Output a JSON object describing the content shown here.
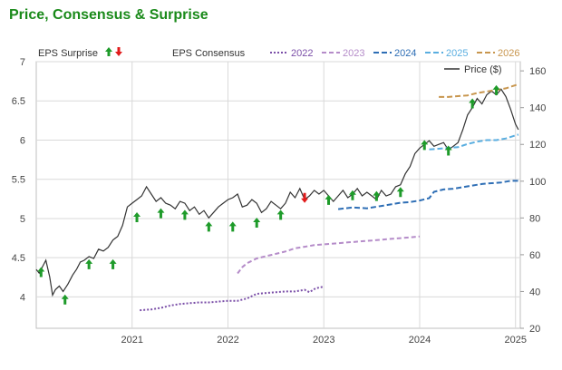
{
  "title": "Price, Consensus & Surprise",
  "chart_data": {
    "type": "line",
    "title": "Price, Consensus & Surprise",
    "x_ticks": [
      "2021",
      "2022",
      "2023",
      "2024",
      "2025"
    ],
    "x_range": [
      2020.0,
      2025.05
    ],
    "left_axis": {
      "ticks": [
        4,
        4.5,
        5,
        5.5,
        6,
        6.5,
        7
      ],
      "range": [
        3.6,
        7.0
      ]
    },
    "right_axis": {
      "ticks": [
        20,
        40,
        60,
        80,
        100,
        120,
        140,
        160
      ],
      "range": [
        20,
        165
      ]
    },
    "grid": true,
    "legend": {
      "surprise_label": "EPS Surprise",
      "consensus_label": "EPS Consensus",
      "price_label": "Price ($)",
      "position": "top"
    },
    "colors": {
      "price": "#333333",
      "2022": "#7b4fa8",
      "2023": "#b58cc9",
      "2024": "#2e6eb5",
      "2025": "#5aaee0",
      "2026": "#c8964e",
      "surprise_up": "#1e9b2a",
      "surprise_down": "#e11b1b",
      "grid": "#d9d9d9"
    },
    "series": [
      {
        "name": "Price ($)",
        "axis": "right",
        "x": [
          2020.0,
          2020.03,
          2020.07,
          2020.1,
          2020.14,
          2020.17,
          2020.2,
          2020.24,
          2020.28,
          2020.33,
          2020.38,
          2020.42,
          2020.46,
          2020.5,
          2020.55,
          2020.6,
          2020.65,
          2020.7,
          2020.75,
          2020.8,
          2020.85,
          2020.9,
          2020.95,
          2021.0,
          2021.05,
          2021.1,
          2021.15,
          2021.2,
          2021.25,
          2021.3,
          2021.35,
          2021.4,
          2021.45,
          2021.5,
          2021.55,
          2021.6,
          2021.65,
          2021.7,
          2021.75,
          2021.8,
          2021.85,
          2021.9,
          2021.95,
          2022.0,
          2022.05,
          2022.1,
          2022.15,
          2022.2,
          2022.25,
          2022.3,
          2022.35,
          2022.4,
          2022.45,
          2022.5,
          2022.55,
          2022.6,
          2022.65,
          2022.7,
          2022.75,
          2022.8,
          2022.85,
          2022.9,
          2022.95,
          2023.0,
          2023.05,
          2023.1,
          2023.15,
          2023.2,
          2023.25,
          2023.3,
          2023.35,
          2023.4,
          2023.45,
          2023.5,
          2023.55,
          2023.6,
          2023.65,
          2023.7,
          2023.75,
          2023.8,
          2023.85,
          2023.9,
          2023.95,
          2024.0,
          2024.05,
          2024.1,
          2024.15,
          2024.2,
          2024.25,
          2024.3,
          2024.35,
          2024.4,
          2024.45,
          2024.5,
          2024.55,
          2024.6,
          2024.65,
          2024.7,
          2024.75,
          2024.8,
          2024.85,
          2024.9,
          2024.95,
          2025.0,
          2025.03
        ],
        "values": [
          52,
          50,
          54,
          57,
          48,
          38,
          41,
          43,
          40,
          44,
          49,
          52,
          56,
          57,
          59,
          58,
          63,
          62,
          64,
          68,
          70,
          76,
          86,
          88,
          90,
          92,
          97,
          93,
          89,
          91,
          88,
          87,
          85,
          89,
          88,
          84,
          86,
          82,
          84,
          80,
          83,
          86,
          88,
          90,
          91,
          93,
          86,
          87,
          90,
          88,
          83,
          85,
          89,
          87,
          85,
          88,
          94,
          91,
          96,
          90,
          92,
          95,
          93,
          95,
          92,
          89,
          92,
          95,
          91,
          93,
          96,
          92,
          94,
          92,
          90,
          95,
          92,
          93,
          97,
          98,
          104,
          108,
          115,
          118,
          120,
          122,
          119,
          120,
          121,
          117,
          119,
          121,
          128,
          136,
          140,
          145,
          142,
          147,
          149,
          147,
          150,
          146,
          139,
          131,
          128
        ]
      },
      {
        "name": "2022",
        "axis": "left",
        "x": [
          2021.08,
          2021.2,
          2021.3,
          2021.4,
          2021.5,
          2021.6,
          2021.7,
          2021.8,
          2021.9,
          2022.0,
          2022.1,
          2022.2,
          2022.3,
          2022.4,
          2022.5,
          2022.6,
          2022.7,
          2022.8,
          2022.85,
          2022.9,
          2022.95,
          2023.0
        ],
        "values": [
          3.83,
          3.84,
          3.86,
          3.89,
          3.91,
          3.92,
          3.93,
          3.93,
          3.94,
          3.95,
          3.95,
          3.98,
          4.04,
          4.05,
          4.06,
          4.07,
          4.07,
          4.09,
          4.06,
          4.1,
          4.12,
          4.13
        ]
      },
      {
        "name": "2023",
        "axis": "left",
        "x": [
          2022.1,
          2022.15,
          2022.2,
          2022.3,
          2022.4,
          2022.5,
          2022.6,
          2022.7,
          2022.8,
          2022.9,
          2023.0,
          2023.1,
          2023.2,
          2023.3,
          2023.4,
          2023.5,
          2023.6,
          2023.7,
          2023.8,
          2023.9,
          2024.0
        ],
        "values": [
          4.3,
          4.38,
          4.43,
          4.49,
          4.52,
          4.55,
          4.58,
          4.62,
          4.64,
          4.66,
          4.67,
          4.68,
          4.69,
          4.7,
          4.71,
          4.72,
          4.73,
          4.74,
          4.75,
          4.76,
          4.77
        ]
      },
      {
        "name": "2024",
        "axis": "left",
        "x": [
          2023.15,
          2023.3,
          2023.45,
          2023.6,
          2023.7,
          2023.8,
          2023.9,
          2024.0,
          2024.1,
          2024.15,
          2024.25,
          2024.35,
          2024.45,
          2024.55,
          2024.65,
          2024.75,
          2024.85,
          2024.95,
          2025.03
        ],
        "values": [
          5.12,
          5.14,
          5.13,
          5.16,
          5.18,
          5.2,
          5.21,
          5.23,
          5.26,
          5.34,
          5.37,
          5.38,
          5.4,
          5.42,
          5.44,
          5.45,
          5.46,
          5.48,
          5.48
        ]
      },
      {
        "name": "2025",
        "axis": "left",
        "x": [
          2024.1,
          2024.2,
          2024.3,
          2024.4,
          2024.5,
          2024.6,
          2024.7,
          2024.8,
          2024.9,
          2025.0,
          2025.03
        ],
        "values": [
          5.88,
          5.89,
          5.9,
          5.91,
          5.95,
          5.98,
          6.0,
          6.0,
          6.02,
          6.06,
          6.07
        ]
      },
      {
        "name": "2026",
        "axis": "left",
        "x": [
          2024.2,
          2024.3,
          2024.4,
          2024.5,
          2024.6,
          2024.7,
          2024.8,
          2024.9,
          2025.0,
          2025.03
        ],
        "values": [
          6.55,
          6.55,
          6.56,
          6.57,
          6.6,
          6.62,
          6.64,
          6.66,
          6.7,
          6.71
        ]
      }
    ],
    "surprises": [
      {
        "x": 2020.05,
        "value": 4.3,
        "direction": "up"
      },
      {
        "x": 2020.3,
        "value": 3.95,
        "direction": "up"
      },
      {
        "x": 2020.55,
        "value": 4.4,
        "direction": "up"
      },
      {
        "x": 2020.8,
        "value": 4.4,
        "direction": "up"
      },
      {
        "x": 2021.05,
        "value": 5.0,
        "direction": "up"
      },
      {
        "x": 2021.3,
        "value": 5.05,
        "direction": "up"
      },
      {
        "x": 2021.55,
        "value": 5.03,
        "direction": "up"
      },
      {
        "x": 2021.8,
        "value": 4.88,
        "direction": "up"
      },
      {
        "x": 2022.05,
        "value": 4.88,
        "direction": "up"
      },
      {
        "x": 2022.3,
        "value": 4.93,
        "direction": "up"
      },
      {
        "x": 2022.55,
        "value": 5.03,
        "direction": "up"
      },
      {
        "x": 2022.8,
        "value": 5.28,
        "direction": "down"
      },
      {
        "x": 2023.05,
        "value": 5.22,
        "direction": "up"
      },
      {
        "x": 2023.3,
        "value": 5.28,
        "direction": "up"
      },
      {
        "x": 2023.55,
        "value": 5.27,
        "direction": "up"
      },
      {
        "x": 2023.8,
        "value": 5.32,
        "direction": "up"
      },
      {
        "x": 2024.05,
        "value": 5.92,
        "direction": "up"
      },
      {
        "x": 2024.3,
        "value": 5.85,
        "direction": "up"
      },
      {
        "x": 2024.55,
        "value": 6.45,
        "direction": "up"
      },
      {
        "x": 2024.8,
        "value": 6.62,
        "direction": "up"
      }
    ]
  }
}
